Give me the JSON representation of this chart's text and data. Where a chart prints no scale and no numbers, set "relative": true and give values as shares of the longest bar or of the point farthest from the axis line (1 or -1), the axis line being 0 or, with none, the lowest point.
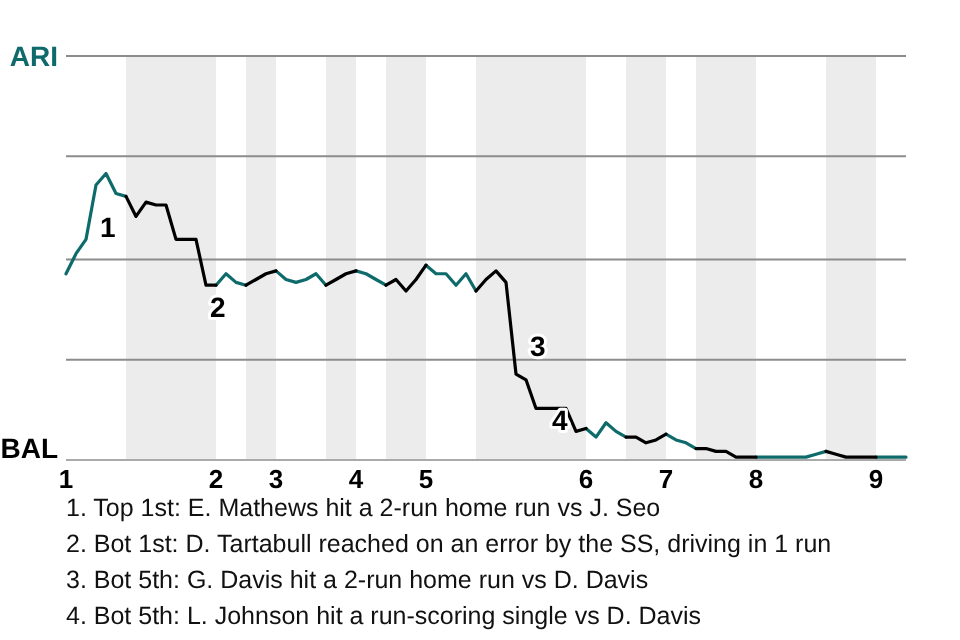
{
  "chart_data": {
    "type": "line",
    "relative": true,
    "categories": [
      "1",
      null,
      null,
      null,
      null,
      null,
      null,
      null,
      null,
      null,
      null,
      null,
      null,
      null,
      null,
      "2",
      null,
      null,
      null,
      null,
      null,
      "3",
      null,
      null,
      null,
      null,
      null,
      null,
      null,
      "4",
      null,
      null,
      null,
      null,
      null,
      null,
      "5",
      null,
      null,
      null,
      null,
      null,
      null,
      null,
      null,
      null,
      null,
      null,
      null,
      null,
      null,
      null,
      "6",
      null,
      null,
      null,
      null,
      null,
      null,
      null,
      "7",
      null,
      null,
      null,
      null,
      null,
      null,
      null,
      null,
      "8",
      null,
      null,
      null,
      null,
      null,
      null,
      null,
      null,
      null,
      null,
      null,
      "9",
      null,
      null,
      null
    ],
    "marker": "none",
    "line_style": "solid",
    "ref_lines": [
      {
        "axis": "y",
        "value": 0.35,
        "color": "#8c8c8c"
      },
      {
        "axis": "y",
        "value": 0.7,
        "color": "#8c8c8c"
      },
      {
        "axis": "y",
        "value": 1.06,
        "color": "#8c8c8c"
      },
      {
        "axis": "y",
        "value": 1.41,
        "color": "#8c8c8c"
      }
    ],
    "series": [
      {
        "color": "#0f6b6b",
        "values": [
          0.65,
          0.72,
          0.77,
          0.96,
          1,
          0.93,
          0.92,
          null,
          null,
          null,
          null,
          null,
          null,
          null,
          null,
          0.61,
          0.65,
          0.62,
          0.61,
          null,
          null,
          0.66,
          0.63,
          0.62,
          0.63,
          0.65,
          0.61,
          null,
          null,
          0.66,
          0.65,
          0.63,
          0.61,
          null,
          null,
          null,
          0.68,
          0.65,
          0.65,
          0.61,
          0.65,
          0.59,
          null,
          null,
          null,
          null,
          null,
          null,
          null,
          null,
          null,
          null,
          0.11,
          0.08,
          0.13,
          0.1,
          0.08,
          null,
          null,
          null,
          0.09,
          0.07,
          0.06,
          0.04,
          null,
          null,
          null,
          null,
          null,
          0.01,
          0.01,
          0.01,
          0.01,
          0.01,
          0.01,
          0.02,
          0.03,
          null,
          null,
          null,
          null,
          0.01,
          0.01,
          0.01,
          0.01
        ]
      },
      {
        "color": "#000000",
        "values": [
          null,
          null,
          null,
          null,
          null,
          null,
          0.92,
          0.85,
          0.9,
          0.89,
          0.89,
          0.77,
          0.77,
          0.77,
          0.61,
          0.61,
          null,
          null,
          0.61,
          0.63,
          0.65,
          0.66,
          null,
          null,
          null,
          null,
          0.61,
          0.63,
          0.65,
          0.66,
          null,
          null,
          0.61,
          0.63,
          0.59,
          0.63,
          0.68,
          null,
          null,
          null,
          null,
          0.59,
          0.63,
          0.66,
          0.62,
          0.3,
          0.28,
          0.18,
          0.18,
          0.18,
          0.18,
          0.1,
          0.11,
          null,
          null,
          null,
          0.08,
          0.08,
          0.06,
          0.07,
          0.09,
          null,
          null,
          0.04,
          0.04,
          0.03,
          0.03,
          0.01,
          0.01,
          0.01,
          null,
          null,
          null,
          null,
          null,
          null,
          0.03,
          0.02,
          0.01,
          0.01,
          0.01,
          0.01,
          null,
          null,
          null
        ]
      }
    ],
    "annotations": [
      "ARI",
      "BAL",
      "1",
      "2",
      "3",
      "4",
      "1. Top 1st: E. Mathews hit a 2-run home run vs J. Seo",
      "2. Bot 1st: D. Tartabull reached on an error by the SS, driving in 1 run",
      "3. Bot 5th: G. Davis hit a 2-run home run vs D. Davis",
      "4. Bot 5th: L. Johnson hit a run-scoring single vs D. Davis"
    ]
  }
}
